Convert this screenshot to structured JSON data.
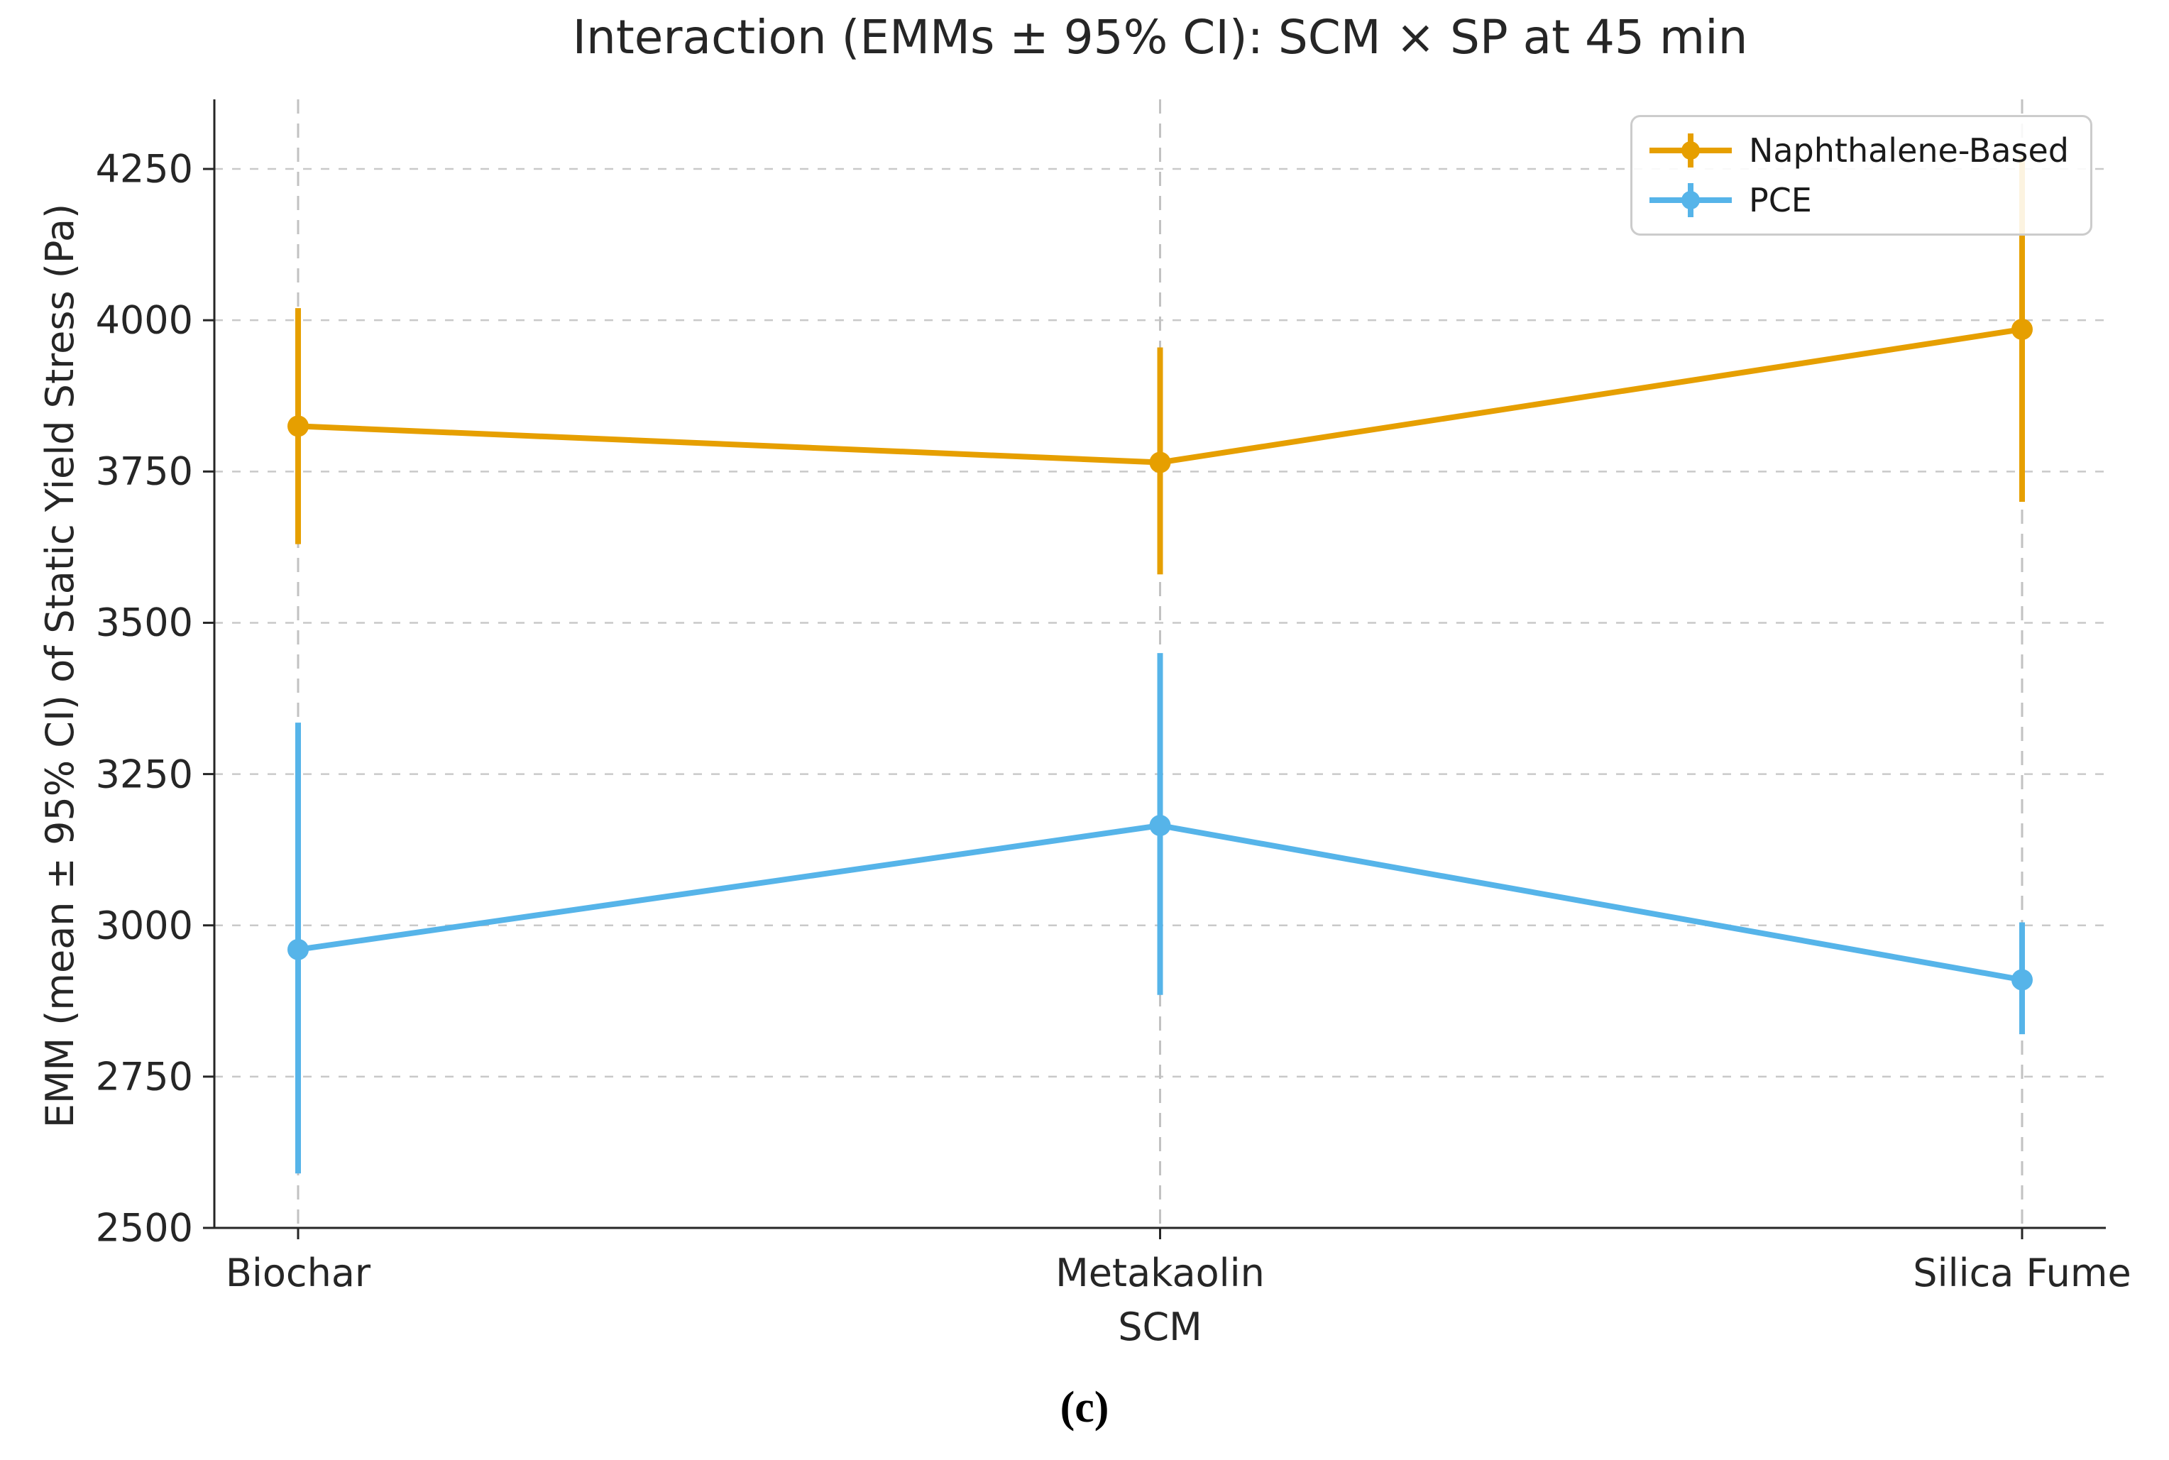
{
  "figure": {
    "title": "Interaction (EMMs ± 95% CI): SCM × SP at 45 min",
    "caption": "(c)"
  },
  "axes": {
    "x_label": "SCM",
    "y_label": "EMM (mean ± 95% CI) of Static Yield Stress (Pa)"
  },
  "legend": {
    "position": "upper right",
    "items": [
      {
        "label": "Naphthalene-Based",
        "color": "#E69F00"
      },
      {
        "label": "PCE",
        "color": "#56B4E9"
      }
    ]
  },
  "chart_data": {
    "type": "line",
    "title": "Interaction (EMMs ± 95% CI): SCM × SP at 45 min",
    "xlabel": "SCM",
    "ylabel": "EMM (mean ± 95% CI) of Static Yield Stress (Pa)",
    "categories": [
      "Biochar",
      "Metakaolin",
      "Silica Fume"
    ],
    "yticks": [
      2500,
      2750,
      3000,
      3250,
      3500,
      3750,
      4000,
      4250
    ],
    "ylim": [
      2500,
      4365
    ],
    "grid": "dashed, both directions",
    "spines": "left and bottom only",
    "error_bars": "95% CI, no caps",
    "legend_position": "upper right",
    "series": [
      {
        "name": "Naphthalene-Based",
        "color": "#E69F00",
        "means": [
          3825,
          3765,
          3985
        ],
        "ci_low": [
          3630,
          3580,
          3700
        ],
        "ci_high": [
          4020,
          3955,
          4270
        ]
      },
      {
        "name": "PCE",
        "color": "#56B4E9",
        "means": [
          2960,
          3165,
          2910
        ],
        "ci_low": [
          2590,
          2885,
          2820
        ],
        "ci_high": [
          3335,
          3450,
          3005
        ]
      }
    ]
  }
}
